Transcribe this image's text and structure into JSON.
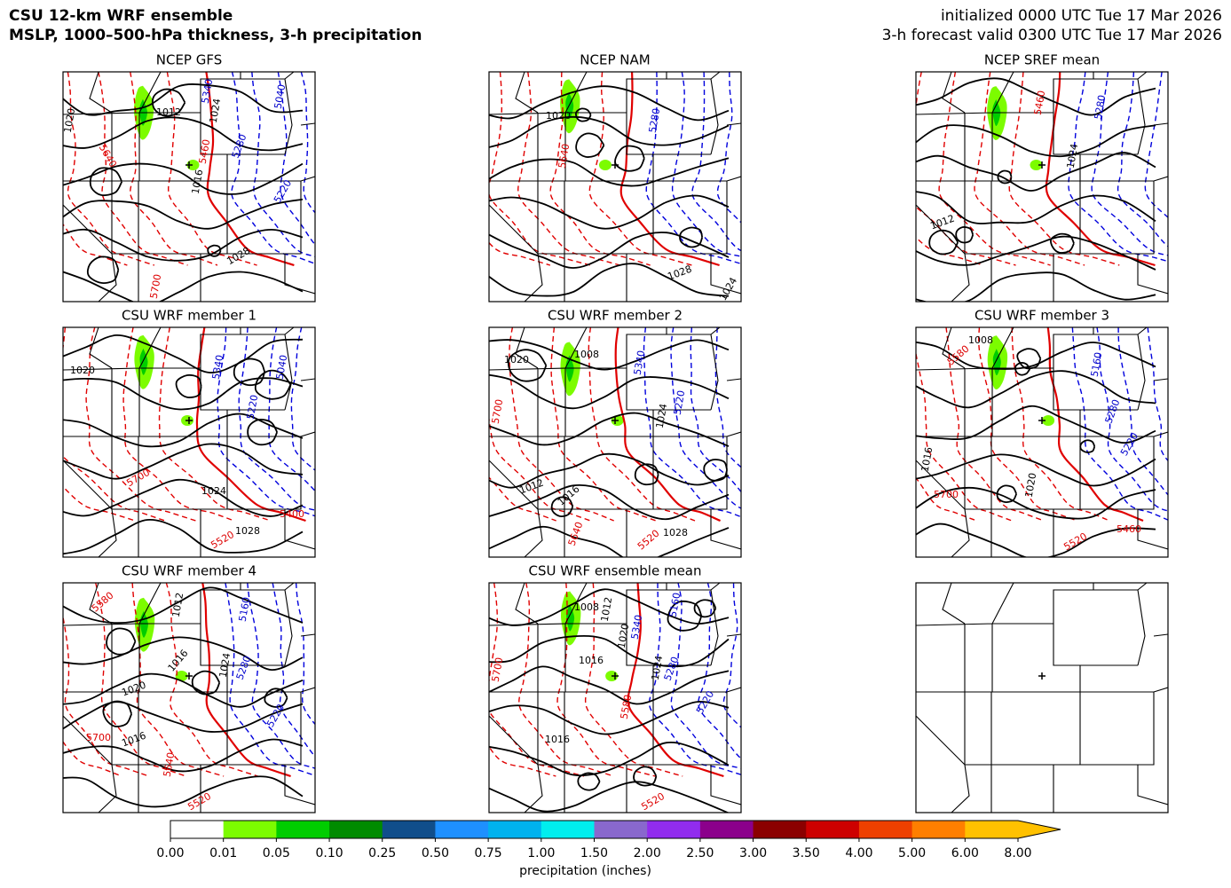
{
  "header": {
    "title": "CSU 12-km WRF ensemble",
    "subtitle": "MSLP, 1000–500-hPa thickness, 3-h precipitation",
    "initialized": "initialized 0000 UTC Tue 17 Mar 2026",
    "valid": "3-h forecast valid 0300 UTC Tue 17 Mar 2026"
  },
  "panels": [
    {
      "title": "NCEP GFS",
      "labels": [
        {
          "text": "1012",
          "color": "#000000"
        },
        {
          "text": "1024",
          "color": "#000000"
        },
        {
          "text": "1020",
          "color": "#000000"
        },
        {
          "text": "1016",
          "color": "#000000"
        },
        {
          "text": "1028",
          "color": "#000000"
        },
        {
          "text": "5340",
          "color": "#0000cc"
        },
        {
          "text": "5280",
          "color": "#0000cc"
        },
        {
          "text": "5220",
          "color": "#0000cc"
        },
        {
          "text": "5040",
          "color": "#0000cc"
        },
        {
          "text": "5640",
          "color": "#dd0000"
        },
        {
          "text": "5460",
          "color": "#dd0000"
        },
        {
          "text": "5700",
          "color": "#dd0000"
        }
      ]
    },
    {
      "title": "NCEP NAM",
      "labels": [
        {
          "text": "1020",
          "color": "#000000"
        },
        {
          "text": "1028",
          "color": "#000000"
        },
        {
          "text": "1024",
          "color": "#000000"
        },
        {
          "text": "5280",
          "color": "#0000cc"
        },
        {
          "text": "5640",
          "color": "#dd0000"
        }
      ]
    },
    {
      "title": "NCEP SREF mean",
      "labels": [
        {
          "text": "1012",
          "color": "#000000"
        },
        {
          "text": "1024",
          "color": "#000000"
        },
        {
          "text": "5280",
          "color": "#0000cc"
        },
        {
          "text": "5460",
          "color": "#dd0000"
        }
      ]
    },
    {
      "title": "CSU WRF member 1",
      "labels": [
        {
          "text": "1020",
          "color": "#000000"
        },
        {
          "text": "1024",
          "color": "#000000"
        },
        {
          "text": "1028",
          "color": "#000000"
        },
        {
          "text": "5400",
          "color": "#dd0000"
        },
        {
          "text": "5520",
          "color": "#dd0000"
        },
        {
          "text": "5700",
          "color": "#dd0000"
        },
        {
          "text": "5340",
          "color": "#0000cc"
        },
        {
          "text": "5220",
          "color": "#0000cc"
        },
        {
          "text": "5040",
          "color": "#0000cc"
        }
      ]
    },
    {
      "title": "CSU WRF member 2",
      "labels": [
        {
          "text": "1008",
          "color": "#000000"
        },
        {
          "text": "1020",
          "color": "#000000"
        },
        {
          "text": "1024",
          "color": "#000000"
        },
        {
          "text": "1028",
          "color": "#000000"
        },
        {
          "text": "1012",
          "color": "#000000"
        },
        {
          "text": "1016",
          "color": "#000000"
        },
        {
          "text": "5340",
          "color": "#0000cc"
        },
        {
          "text": "5220",
          "color": "#0000cc"
        },
        {
          "text": "5520",
          "color": "#dd0000"
        },
        {
          "text": "5640",
          "color": "#dd0000"
        },
        {
          "text": "5700",
          "color": "#dd0000"
        }
      ]
    },
    {
      "title": "CSU WRF member 3",
      "labels": [
        {
          "text": "1008",
          "color": "#000000"
        },
        {
          "text": "5160",
          "color": "#0000cc"
        },
        {
          "text": "5280",
          "color": "#0000cc"
        },
        {
          "text": "5220",
          "color": "#0000cc"
        },
        {
          "text": "5700",
          "color": "#dd0000"
        },
        {
          "text": "5460",
          "color": "#dd0000"
        },
        {
          "text": "5520",
          "color": "#dd0000"
        },
        {
          "text": "1016",
          "color": "#000000"
        },
        {
          "text": "1020",
          "color": "#000000"
        },
        {
          "text": "5580",
          "color": "#dd0000"
        }
      ]
    },
    {
      "title": "CSU WRF member 4",
      "labels": [
        {
          "text": "1012",
          "color": "#000000"
        },
        {
          "text": "1016",
          "color": "#000000"
        },
        {
          "text": "1020",
          "color": "#000000"
        },
        {
          "text": "1016",
          "color": "#000000"
        },
        {
          "text": "1024",
          "color": "#000000"
        },
        {
          "text": "5160",
          "color": "#0000cc"
        },
        {
          "text": "5280",
          "color": "#0000cc"
        },
        {
          "text": "5220",
          "color": "#0000cc"
        },
        {
          "text": "5580",
          "color": "#dd0000"
        },
        {
          "text": "5700",
          "color": "#dd0000"
        },
        {
          "text": "5520",
          "color": "#dd0000"
        },
        {
          "text": "5640",
          "color": "#dd0000"
        }
      ]
    },
    {
      "title": "CSU WRF ensemble mean",
      "labels": [
        {
          "text": "1008",
          "color": "#000000"
        },
        {
          "text": "1012",
          "color": "#000000"
        },
        {
          "text": "1016",
          "color": "#000000"
        },
        {
          "text": "1020",
          "color": "#000000"
        },
        {
          "text": "1024",
          "color": "#000000"
        },
        {
          "text": "1016",
          "color": "#000000"
        },
        {
          "text": "5340",
          "color": "#0000cc"
        },
        {
          "text": "5280",
          "color": "#0000cc"
        },
        {
          "text": "5220",
          "color": "#0000cc"
        },
        {
          "text": "5160",
          "color": "#0000cc"
        },
        {
          "text": "5700",
          "color": "#dd0000"
        },
        {
          "text": "5580",
          "color": "#dd0000"
        },
        {
          "text": "5520",
          "color": "#dd0000"
        }
      ]
    },
    {
      "labels": []
    }
  ],
  "colorbar": {
    "label": "precipitation (inches)",
    "ticks": [
      {
        "value": 0,
        "label": "0.00"
      },
      0.01,
      0.05,
      {
        "value": 0.1,
        "label": "0.10"
      },
      0.25,
      {
        "value": 0.5,
        "label": "0.50"
      },
      0.75,
      {
        "value": 1,
        "label": "1.00"
      },
      {
        "value": 1.5,
        "label": "1.50"
      },
      {
        "value": 2,
        "label": "2.00"
      },
      {
        "value": 2.5,
        "label": "2.50"
      },
      {
        "value": 3,
        "label": "3.00"
      },
      {
        "value": 3.5,
        "label": "3.50"
      },
      {
        "value": 4,
        "label": "4.00"
      },
      {
        "value": 5,
        "label": "5.00"
      },
      {
        "value": 6,
        "label": "6.00"
      },
      {
        "value": 8,
        "label": "8.00"
      }
    ],
    "colors": [
      "#ffffff",
      "#7cfc00",
      "#00cd00",
      "#008b00",
      "#104e8b",
      "#1e90ff",
      "#00b2ee",
      "#00eeee",
      "#8968cd",
      "#912cee",
      "#8b008b",
      "#8b0000",
      "#cd0000",
      "#ee4000",
      "#ff7f00",
      "#ffc100"
    ],
    "extend_color": "#ffc100"
  }
}
